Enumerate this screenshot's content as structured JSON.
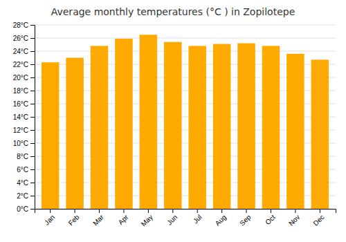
{
  "chart_data": {
    "type": "bar",
    "title": "Average monthly temperatures (°C ) in Zopilotepe",
    "categories": [
      "Jan",
      "Feb",
      "Mar",
      "Apr",
      "May",
      "Jun",
      "Jul",
      "Aug",
      "Sep",
      "Oct",
      "Nov",
      "Dec"
    ],
    "values": [
      22.3,
      23.0,
      24.8,
      25.9,
      26.5,
      25.4,
      24.8,
      25.1,
      25.2,
      24.8,
      23.6,
      22.7
    ],
    "color": "#FFAA00",
    "ylim": [
      0,
      28
    ],
    "yticks": [
      {
        "value": 0,
        "label": "0°C"
      },
      {
        "value": 2,
        "label": "2°C"
      },
      {
        "value": 4,
        "label": "4°C"
      },
      {
        "value": 6,
        "label": "6°C"
      },
      {
        "value": 8,
        "label": "8°C"
      },
      {
        "value": 10,
        "label": "10°C"
      },
      {
        "value": 12,
        "label": "12°C"
      },
      {
        "value": 14,
        "label": "14°C"
      },
      {
        "value": 16,
        "label": "16°C"
      },
      {
        "value": 18,
        "label": "18°C"
      },
      {
        "value": 20,
        "label": "20°C"
      },
      {
        "value": 22,
        "label": "22°C"
      },
      {
        "value": 24,
        "label": "24°C"
      },
      {
        "value": 26,
        "label": "26°C"
      },
      {
        "value": 28,
        "label": "28°C"
      }
    ],
    "grid": true
  }
}
